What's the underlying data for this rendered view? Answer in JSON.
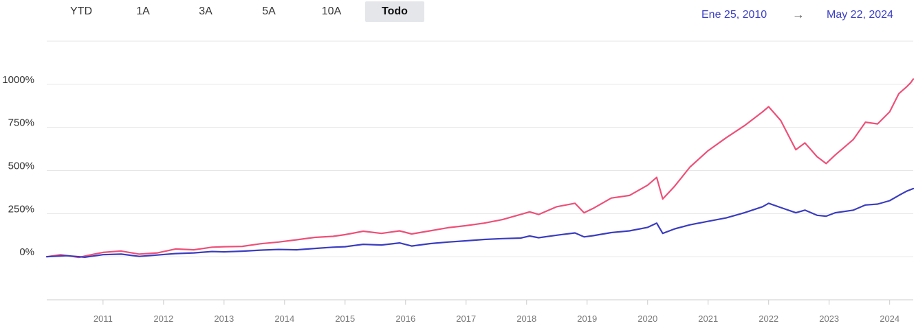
{
  "range_selector": {
    "tabs": [
      {
        "label": "YTD",
        "active": false
      },
      {
        "label": "1A",
        "active": false
      },
      {
        "label": "3A",
        "active": false
      },
      {
        "label": "5A",
        "active": false
      },
      {
        "label": "10A",
        "active": false
      },
      {
        "label": "Todo",
        "active": true
      }
    ]
  },
  "date_range": {
    "start": "Ene 25, 2010",
    "arrow": "→",
    "end": "May 22, 2024",
    "color": "#3b3fc4"
  },
  "chart_data": {
    "type": "line",
    "title": "",
    "xlabel": "",
    "ylabel": "",
    "x_unit": "year",
    "xlim": [
      2010.07,
      2024.39
    ],
    "ylim": [
      -250,
      1250
    ],
    "y_ticks": [
      0,
      250,
      500,
      750,
      1000
    ],
    "y_tick_labels": [
      "0%",
      "250%",
      "500%",
      "750%",
      "1000%"
    ],
    "x_ticks": [
      2011,
      2012,
      2013,
      2014,
      2015,
      2016,
      2017,
      2018,
      2019,
      2020,
      2021,
      2022,
      2023,
      2024
    ],
    "x_tick_labels": [
      "2011",
      "2012",
      "2013",
      "2014",
      "2015",
      "2016",
      "2017",
      "2018",
      "2019",
      "2020",
      "2021",
      "2022",
      "2023",
      "2024"
    ],
    "grid": true,
    "legend": "none",
    "series": [
      {
        "color": "#ee4f78",
        "points": [
          [
            2010.07,
            0
          ],
          [
            2010.3,
            12
          ],
          [
            2010.6,
            -4
          ],
          [
            2010.85,
            15
          ],
          [
            2011.0,
            25
          ],
          [
            2011.3,
            33
          ],
          [
            2011.6,
            15
          ],
          [
            2011.9,
            22
          ],
          [
            2012.2,
            45
          ],
          [
            2012.5,
            40
          ],
          [
            2012.8,
            55
          ],
          [
            2013.0,
            58
          ],
          [
            2013.3,
            60
          ],
          [
            2013.6,
            75
          ],
          [
            2013.9,
            85
          ],
          [
            2014.2,
            98
          ],
          [
            2014.5,
            112
          ],
          [
            2014.8,
            118
          ],
          [
            2015.0,
            128
          ],
          [
            2015.3,
            148
          ],
          [
            2015.6,
            135
          ],
          [
            2015.9,
            150
          ],
          [
            2016.1,
            132
          ],
          [
            2016.4,
            150
          ],
          [
            2016.7,
            168
          ],
          [
            2017.0,
            180
          ],
          [
            2017.3,
            195
          ],
          [
            2017.6,
            215
          ],
          [
            2017.9,
            245
          ],
          [
            2018.05,
            260
          ],
          [
            2018.2,
            245
          ],
          [
            2018.5,
            290
          ],
          [
            2018.8,
            310
          ],
          [
            2018.95,
            255
          ],
          [
            2019.1,
            280
          ],
          [
            2019.4,
            340
          ],
          [
            2019.7,
            355
          ],
          [
            2020.0,
            415
          ],
          [
            2020.15,
            460
          ],
          [
            2020.25,
            335
          ],
          [
            2020.45,
            410
          ],
          [
            2020.7,
            520
          ],
          [
            2021.0,
            615
          ],
          [
            2021.3,
            690
          ],
          [
            2021.6,
            760
          ],
          [
            2021.9,
            840
          ],
          [
            2022.0,
            870
          ],
          [
            2022.2,
            790
          ],
          [
            2022.45,
            620
          ],
          [
            2022.6,
            660
          ],
          [
            2022.8,
            580
          ],
          [
            2022.95,
            540
          ],
          [
            2023.1,
            590
          ],
          [
            2023.4,
            680
          ],
          [
            2023.6,
            780
          ],
          [
            2023.8,
            770
          ],
          [
            2024.0,
            840
          ],
          [
            2024.15,
            945
          ],
          [
            2024.28,
            985
          ],
          [
            2024.35,
            1010
          ],
          [
            2024.39,
            1030
          ]
        ]
      },
      {
        "color": "#3a3cc0",
        "points": [
          [
            2010.07,
            0
          ],
          [
            2010.4,
            6
          ],
          [
            2010.7,
            -3
          ],
          [
            2011.0,
            12
          ],
          [
            2011.3,
            15
          ],
          [
            2011.6,
            2
          ],
          [
            2011.9,
            10
          ],
          [
            2012.2,
            18
          ],
          [
            2012.5,
            22
          ],
          [
            2012.8,
            30
          ],
          [
            2013.0,
            28
          ],
          [
            2013.3,
            32
          ],
          [
            2013.6,
            38
          ],
          [
            2013.9,
            42
          ],
          [
            2014.2,
            40
          ],
          [
            2014.5,
            48
          ],
          [
            2014.8,
            55
          ],
          [
            2015.0,
            58
          ],
          [
            2015.3,
            72
          ],
          [
            2015.6,
            68
          ],
          [
            2015.9,
            80
          ],
          [
            2016.1,
            62
          ],
          [
            2016.4,
            76
          ],
          [
            2016.7,
            85
          ],
          [
            2017.0,
            92
          ],
          [
            2017.3,
            100
          ],
          [
            2017.6,
            105
          ],
          [
            2017.9,
            108
          ],
          [
            2018.05,
            120
          ],
          [
            2018.2,
            110
          ],
          [
            2018.5,
            125
          ],
          [
            2018.8,
            138
          ],
          [
            2018.95,
            115
          ],
          [
            2019.1,
            122
          ],
          [
            2019.4,
            140
          ],
          [
            2019.7,
            150
          ],
          [
            2020.0,
            170
          ],
          [
            2020.15,
            195
          ],
          [
            2020.25,
            135
          ],
          [
            2020.45,
            162
          ],
          [
            2020.7,
            185
          ],
          [
            2021.0,
            205
          ],
          [
            2021.3,
            225
          ],
          [
            2021.6,
            255
          ],
          [
            2021.9,
            290
          ],
          [
            2022.0,
            310
          ],
          [
            2022.2,
            285
          ],
          [
            2022.45,
            255
          ],
          [
            2022.6,
            270
          ],
          [
            2022.8,
            240
          ],
          [
            2022.95,
            235
          ],
          [
            2023.1,
            255
          ],
          [
            2023.4,
            270
          ],
          [
            2023.6,
            300
          ],
          [
            2023.8,
            305
          ],
          [
            2024.0,
            325
          ],
          [
            2024.15,
            355
          ],
          [
            2024.28,
            380
          ],
          [
            2024.39,
            395
          ]
        ]
      }
    ]
  }
}
